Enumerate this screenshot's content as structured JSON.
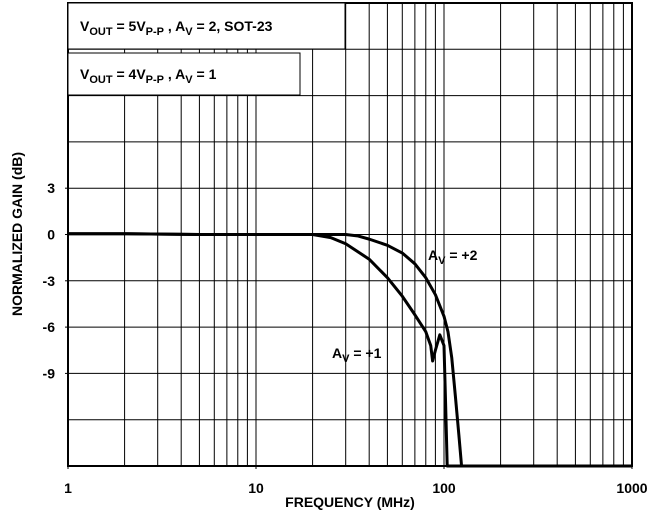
{
  "chart_data": {
    "type": "line",
    "xlabel": "FREQUENCY (MHz)",
    "ylabel": "NORMALIZED GAIN (dB)",
    "xscale": "log",
    "xlim": [
      1,
      1000
    ],
    "xticks": [
      1,
      10,
      100,
      1000
    ],
    "xgrid": [
      1,
      2,
      3,
      4,
      5,
      6,
      7,
      8,
      9,
      10,
      20,
      30,
      40,
      50,
      60,
      70,
      80,
      90,
      100,
      200,
      300,
      400,
      500,
      600,
      700,
      800,
      900,
      1000
    ],
    "ylim": [
      -15,
      15
    ],
    "yticks": [
      3,
      0,
      -3,
      -6,
      -9
    ],
    "ygrid": [
      -15,
      -12,
      -9,
      -6,
      -3,
      0,
      3,
      6,
      9,
      12,
      15
    ],
    "grid": true,
    "annotations": [
      {
        "parts": [
          "V",
          "OUT",
          " = 5V",
          "P-P",
          " , A",
          "V",
          " = 2, SOT-23"
        ]
      },
      {
        "parts": [
          "V",
          "OUT",
          " = 4V",
          "P-P",
          " , A",
          "V",
          " = 1"
        ]
      }
    ],
    "series": [
      {
        "name": [
          "A",
          "V",
          " = +1"
        ],
        "color": "#000000",
        "x": [
          1,
          2,
          5,
          10,
          20,
          25,
          30,
          40,
          50,
          60,
          70,
          80,
          85,
          87,
          90,
          95,
          100,
          102,
          104,
          1000
        ],
        "values": [
          0.05,
          0.05,
          0,
          0,
          0,
          -0.2,
          -0.6,
          -1.6,
          -2.8,
          -4,
          -5.2,
          -6.3,
          -7.2,
          -8.2,
          -7.5,
          -6.5,
          -7.2,
          -11,
          -15,
          -15
        ]
      },
      {
        "name": [
          "A",
          "V",
          " = +2"
        ],
        "color": "#000000",
        "x": [
          1,
          2,
          5,
          10,
          20,
          30,
          35,
          40,
          50,
          60,
          70,
          80,
          90,
          100,
          105,
          110,
          115,
          120,
          124,
          1000
        ],
        "values": [
          0.05,
          0.05,
          0,
          0,
          0,
          0,
          -0.1,
          -0.3,
          -0.7,
          -1.2,
          -1.9,
          -2.8,
          -3.9,
          -5.3,
          -6.3,
          -8,
          -10.5,
          -13,
          -15,
          -15
        ]
      }
    ]
  }
}
